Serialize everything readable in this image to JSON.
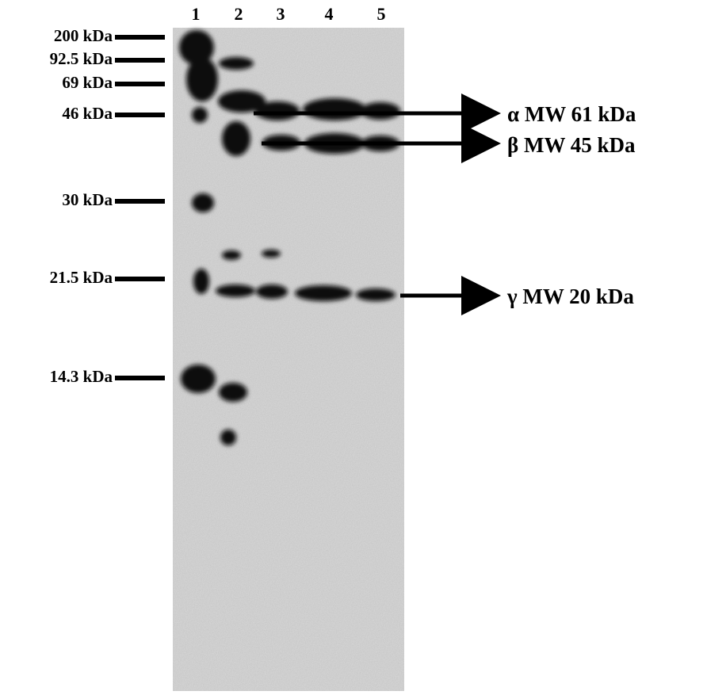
{
  "lanes": [
    "1",
    "2",
    "3",
    "4",
    "5"
  ],
  "markers": [
    "200 kDa",
    "92.5 kDa",
    "69 kDa",
    "46 kDa",
    "30 kDa",
    "21.5 kDa",
    "14.3 kDa"
  ],
  "subunits": [
    "α MW 61 kDa",
    "β MW 45 kDa",
    "γ MW 20 kDa"
  ]
}
